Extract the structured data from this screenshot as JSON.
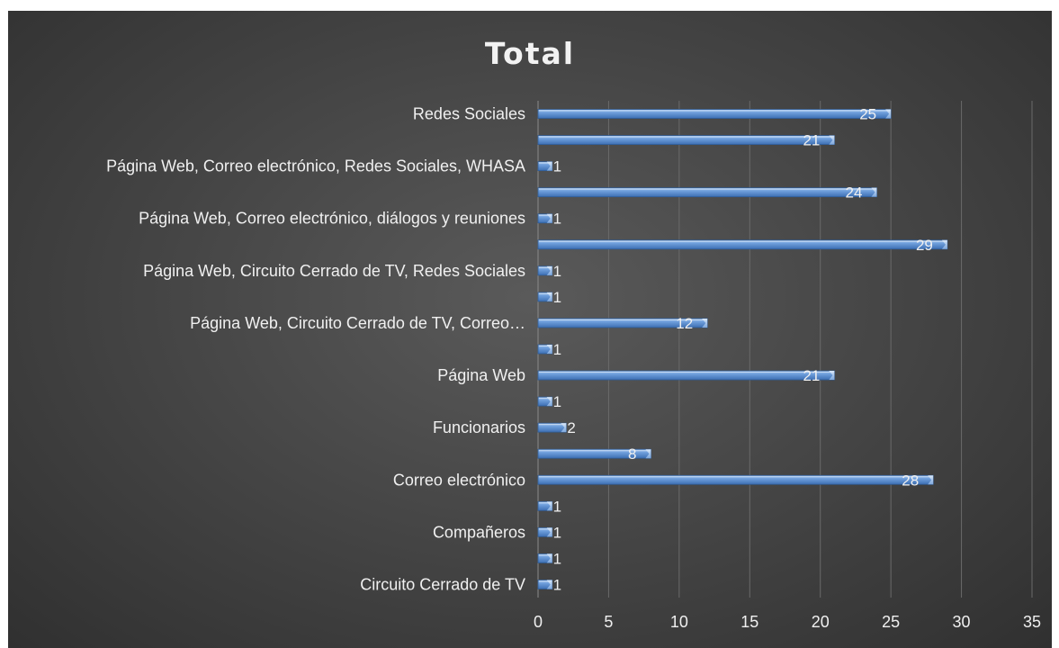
{
  "chart_data": {
    "type": "bar",
    "orientation": "horizontal",
    "title": "Total",
    "categories": [
      "Circuito Cerrado de TV",
      "",
      "Compañeros",
      "",
      "Correo electrónico",
      "",
      "Funcionarios",
      "",
      "Página Web",
      "",
      "Página Web, Circuito Cerrado de TV, Correo…",
      "",
      "Página Web, Circuito Cerrado de TV, Redes Sociales",
      "",
      "Página Web, Correo electrónico, diálogos y reuniones",
      "",
      "Página Web, Correo electrónico, Redes Sociales, WHASA",
      "",
      "Redes Sociales"
    ],
    "values": [
      1,
      1,
      1,
      1,
      28,
      8,
      2,
      1,
      21,
      1,
      12,
      1,
      1,
      29,
      1,
      24,
      1,
      21,
      25
    ],
    "xlim": [
      0,
      35
    ],
    "xticks": [
      "0",
      "5",
      "10",
      "15",
      "20",
      "25",
      "30",
      "35"
    ],
    "grid": true,
    "legend": "none",
    "bar_color": "#5b8fd0",
    "background": "#474747",
    "text_color": "#f0f0f0"
  }
}
